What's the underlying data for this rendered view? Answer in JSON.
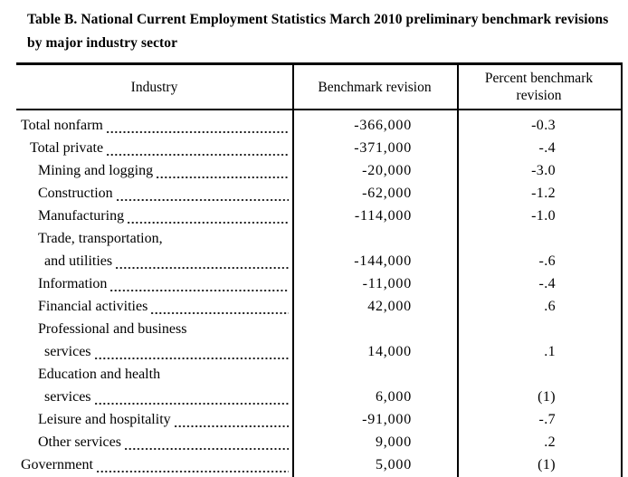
{
  "title": "Table B.  National Current Employment Statistics March 2010 preliminary benchmark revisions by major industry sector",
  "table": {
    "columns": {
      "industry": "Industry",
      "benchmark_revision": "Benchmark revision",
      "percent_benchmark_revision": "Percent benchmark revision"
    },
    "rows": [
      {
        "label": "Total nonfarm",
        "indent": 0,
        "leader": true,
        "revision": "-366,000",
        "percent": "-0.3"
      },
      {
        "label": "Total private",
        "indent": 1,
        "leader": true,
        "revision": "-371,000",
        "percent": "-.4"
      },
      {
        "label": "Mining and logging",
        "indent": 2,
        "leader": true,
        "revision": "-20,000",
        "percent": "-3.0"
      },
      {
        "label": "Construction",
        "indent": 2,
        "leader": true,
        "revision": "-62,000",
        "percent": "-1.2"
      },
      {
        "label": "Manufacturing",
        "indent": 2,
        "leader": true,
        "revision": "-114,000",
        "percent": "-1.0"
      },
      {
        "label": "Trade, transportation,",
        "indent": 2,
        "leader": false,
        "revision": "",
        "percent": ""
      },
      {
        "label": "and utilities",
        "indent": 3,
        "leader": true,
        "revision": "-144,000",
        "percent": "-.6"
      },
      {
        "label": "Information",
        "indent": 2,
        "leader": true,
        "revision": "-11,000",
        "percent": "-.4"
      },
      {
        "label": "Financial activities",
        "indent": 2,
        "leader": true,
        "revision": "42,000",
        "percent": ".6"
      },
      {
        "label": "Professional and business",
        "indent": 2,
        "leader": false,
        "revision": "",
        "percent": ""
      },
      {
        "label": "services",
        "indent": 3,
        "leader": true,
        "revision": "14,000",
        "percent": ".1"
      },
      {
        "label": "Education and health",
        "indent": 2,
        "leader": false,
        "revision": "",
        "percent": ""
      },
      {
        "label": "services",
        "indent": 3,
        "leader": true,
        "revision": "6,000",
        "percent": "(1)"
      },
      {
        "label": "Leisure and hospitality",
        "indent": 2,
        "leader": true,
        "revision": "-91,000",
        "percent": "-.7"
      },
      {
        "label": "Other services",
        "indent": 2,
        "leader": true,
        "revision": "9,000",
        "percent": ".2"
      },
      {
        "label": "Government",
        "indent": 0,
        "leader": true,
        "revision": "5,000",
        "percent": "(1)"
      }
    ]
  },
  "colors": {
    "text": "#000000",
    "border": "#000000",
    "background": "#ffffff"
  }
}
